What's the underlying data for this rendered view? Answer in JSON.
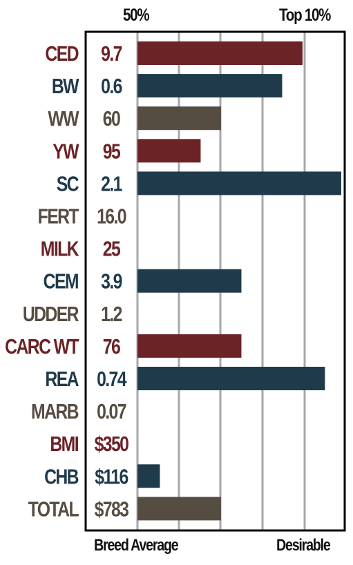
{
  "chart_data": {
    "type": "bar",
    "orientation": "horizontal",
    "top_labels": {
      "left": "50%",
      "right": "Top 10%"
    },
    "bottom_labels": {
      "left": "Breed Average",
      "right": "Desirable"
    },
    "grid": true,
    "colors": {
      "red": "#6b2326",
      "blue": "#1f3a4b",
      "brown": "#564d42"
    },
    "rows": [
      {
        "trait": "CED",
        "value": "9.7",
        "percentile_fill": 0.81,
        "color": "red"
      },
      {
        "trait": "BW",
        "value": "0.6",
        "percentile_fill": 0.71,
        "color": "blue"
      },
      {
        "trait": "WW",
        "value": "60",
        "percentile_fill": 0.41,
        "color": "brown"
      },
      {
        "trait": "YW",
        "value": "95",
        "percentile_fill": 0.31,
        "color": "red"
      },
      {
        "trait": "SC",
        "value": "2.1",
        "percentile_fill": 1.0,
        "color": "blue"
      },
      {
        "trait": "FERT",
        "value": "16.0",
        "percentile_fill": 0,
        "color": "brown"
      },
      {
        "trait": "MILK",
        "value": "25",
        "percentile_fill": 0,
        "color": "red"
      },
      {
        "trait": "CEM",
        "value": "3.9",
        "percentile_fill": 0.51,
        "color": "blue"
      },
      {
        "trait": "UDDER",
        "value": "1.2",
        "percentile_fill": 0,
        "color": "brown"
      },
      {
        "trait": "CARC WT",
        "value": "76",
        "percentile_fill": 0.51,
        "color": "red"
      },
      {
        "trait": "REA",
        "value": "0.74",
        "percentile_fill": 0.92,
        "color": "blue"
      },
      {
        "trait": "MARB",
        "value": "0.07",
        "percentile_fill": 0,
        "color": "brown"
      },
      {
        "trait": "BMI",
        "value": "$350",
        "percentile_fill": 0,
        "color": "red"
      },
      {
        "trait": "CHB",
        "value": "$116",
        "percentile_fill": 0.11,
        "color": "blue"
      },
      {
        "trait": "TOTAL",
        "value": "$783",
        "percentile_fill": 0.41,
        "color": "brown"
      }
    ]
  }
}
